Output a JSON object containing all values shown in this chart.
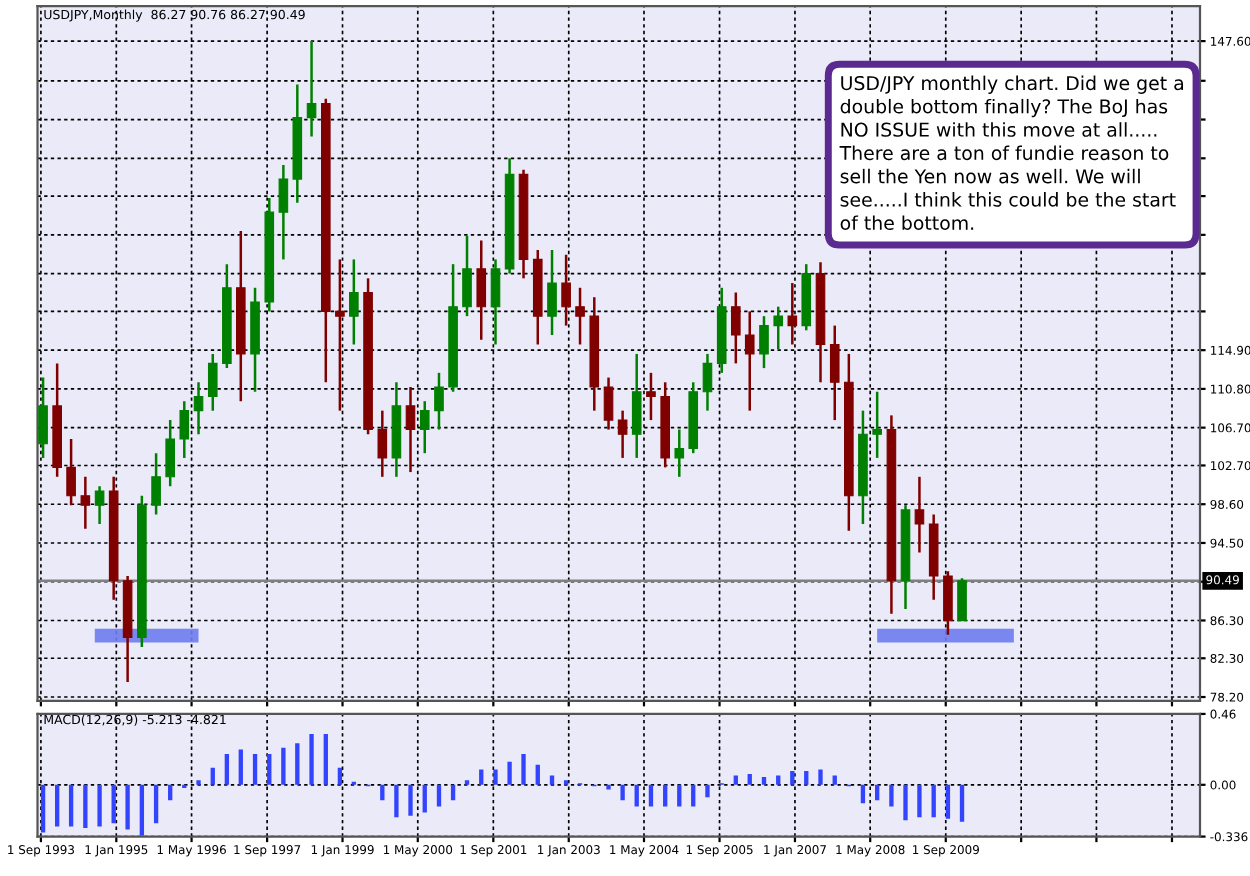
{
  "chart_data": [
    {
      "type": "candlestick",
      "title": "USDJPY,Monthly  86.27 90.76 86.27 90.49",
      "x": [
        "1993-09",
        "1993-12",
        "1994-03",
        "1994-06",
        "1994-09",
        "1994-12",
        "1995-03",
        "1995-06",
        "1995-09",
        "1995-12",
        "1996-03",
        "1996-06",
        "1996-09",
        "1996-12",
        "1997-03",
        "1997-06",
        "1997-09",
        "1997-12",
        "1998-03",
        "1998-06",
        "1998-09",
        "1998-12",
        "1999-03",
        "1999-06",
        "1999-09",
        "1999-12",
        "2000-03",
        "2000-06",
        "2000-09",
        "2000-12",
        "2001-03",
        "2001-06",
        "2001-09",
        "2001-12",
        "2002-03",
        "2002-06",
        "2002-09",
        "2002-12",
        "2003-03",
        "2003-06",
        "2003-09",
        "2003-12",
        "2004-03",
        "2004-06",
        "2004-09",
        "2004-12",
        "2005-03",
        "2005-06",
        "2005-09",
        "2005-12",
        "2006-03",
        "2006-06",
        "2006-09",
        "2006-12",
        "2007-03",
        "2007-06",
        "2007-09",
        "2007-12",
        "2008-03",
        "2008-06",
        "2008-09",
        "2008-12",
        "2009-03",
        "2009-06",
        "2009-09",
        "2009-12"
      ],
      "ohlc": [
        [
          105.0,
          112.0,
          103.5,
          109.0
        ],
        [
          109.0,
          113.5,
          101.5,
          102.5
        ],
        [
          102.5,
          105.5,
          98.5,
          99.5
        ],
        [
          99.5,
          101.5,
          96.0,
          98.5
        ],
        [
          98.5,
          100.5,
          96.5,
          100.0
        ],
        [
          100.0,
          101.5,
          88.5,
          90.5
        ],
        [
          90.5,
          91.0,
          79.8,
          84.5
        ],
        [
          84.5,
          99.5,
          83.5,
          98.5
        ],
        [
          98.5,
          104.0,
          97.5,
          101.5
        ],
        [
          101.5,
          107.5,
          100.5,
          105.5
        ],
        [
          105.5,
          109.5,
          103.5,
          108.5
        ],
        [
          108.5,
          111.5,
          106.0,
          110.0
        ],
        [
          110.0,
          114.5,
          108.5,
          113.5
        ],
        [
          113.5,
          124.0,
          113.0,
          121.5
        ],
        [
          121.5,
          127.5,
          109.5,
          114.5
        ],
        [
          114.5,
          121.5,
          110.5,
          120.0
        ],
        [
          120.0,
          131.0,
          119.0,
          129.5
        ],
        [
          129.5,
          134.5,
          124.5,
          133.0
        ],
        [
          133.0,
          143.0,
          130.5,
          139.5
        ],
        [
          139.5,
          147.6,
          137.5,
          141.0
        ],
        [
          141.0,
          141.5,
          111.5,
          119.0
        ],
        [
          119.0,
          124.5,
          108.5,
          118.5
        ],
        [
          118.5,
          124.5,
          115.5,
          121.0
        ],
        [
          121.0,
          122.5,
          106.0,
          106.5
        ],
        [
          106.5,
          108.5,
          101.5,
          103.5
        ],
        [
          103.5,
          111.5,
          101.5,
          109.0
        ],
        [
          109.0,
          111.0,
          102.0,
          106.5
        ],
        [
          106.5,
          109.5,
          104.0,
          108.5
        ],
        [
          108.5,
          112.5,
          106.5,
          111.0
        ],
        [
          111.0,
          124.0,
          110.5,
          119.5
        ],
        [
          119.5,
          127.0,
          118.5,
          123.5
        ],
        [
          123.5,
          126.5,
          116.0,
          119.5
        ],
        [
          119.5,
          124.5,
          115.5,
          123.5
        ],
        [
          123.5,
          135.2,
          123.0,
          133.5
        ],
        [
          133.5,
          134.0,
          122.5,
          124.5
        ],
        [
          124.5,
          125.5,
          115.5,
          118.5
        ],
        [
          118.5,
          125.5,
          116.5,
          122.0
        ],
        [
          122.0,
          125.0,
          117.5,
          119.5
        ],
        [
          119.5,
          121.5,
          115.5,
          118.5
        ],
        [
          118.5,
          120.5,
          108.5,
          111.0
        ],
        [
          111.0,
          112.0,
          106.5,
          107.5
        ],
        [
          107.5,
          108.5,
          103.5,
          106.0
        ],
        [
          106.0,
          114.5,
          103.5,
          110.5
        ],
        [
          110.5,
          112.5,
          107.5,
          110.0
        ],
        [
          110.0,
          111.5,
          102.5,
          103.5
        ],
        [
          103.5,
          106.5,
          101.5,
          104.5
        ],
        [
          104.5,
          111.5,
          104.0,
          110.5
        ],
        [
          110.5,
          114.5,
          108.5,
          113.5
        ],
        [
          113.5,
          121.5,
          112.5,
          119.5
        ],
        [
          119.5,
          121.0,
          113.5,
          116.5
        ],
        [
          116.5,
          119.0,
          108.5,
          114.5
        ],
        [
          114.5,
          118.5,
          113.0,
          117.5
        ],
        [
          117.5,
          119.5,
          115.0,
          118.5
        ],
        [
          118.5,
          122.0,
          115.5,
          117.5
        ],
        [
          117.5,
          124.0,
          117.0,
          123.0
        ],
        [
          123.0,
          124.2,
          111.5,
          115.5
        ],
        [
          115.5,
          117.5,
          107.5,
          111.5
        ],
        [
          111.5,
          114.5,
          95.8,
          99.5
        ],
        [
          99.5,
          108.5,
          96.5,
          106.0
        ],
        [
          106.0,
          110.5,
          103.5,
          106.5
        ],
        [
          106.5,
          108.0,
          87.0,
          90.5
        ],
        [
          90.5,
          98.5,
          87.5,
          98.0
        ],
        [
          98.0,
          101.5,
          93.5,
          96.5
        ],
        [
          96.5,
          97.5,
          88.5,
          91.0
        ],
        [
          91.0,
          91.5,
          84.8,
          86.27
        ],
        [
          86.27,
          90.76,
          86.27,
          90.49
        ]
      ],
      "colors": [
        "#008000",
        "#800000",
        "#800000",
        "#800000",
        "#008000",
        "#800000",
        "#800000",
        "#008000",
        "#008000",
        "#008000",
        "#008000",
        "#008000",
        "#008000",
        "#008000",
        "#800000",
        "#008000",
        "#008000",
        "#008000",
        "#008000",
        "#008000",
        "#800000",
        "#800000",
        "#008000",
        "#800000",
        "#800000",
        "#008000",
        "#800000",
        "#008000",
        "#008000",
        "#008000",
        "#008000",
        "#800000",
        "#008000",
        "#008000",
        "#800000",
        "#800000",
        "#008000",
        "#800000",
        "#800000",
        "#800000",
        "#800000",
        "#800000",
        "#008000",
        "#800000",
        "#800000",
        "#008000",
        "#008000",
        "#008000",
        "#008000",
        "#800000",
        "#800000",
        "#008000",
        "#008000",
        "#800000",
        "#008000",
        "#800000",
        "#800000",
        "#800000",
        "#008000",
        "#008000",
        "#800000",
        "#008000",
        "#800000",
        "#800000",
        "#800000",
        "#008000"
      ],
      "series": [
        {
          "type": "line",
          "color": "#6f7cf0",
          "x": [
            "1994-08",
            "1996-06"
          ],
          "values": [
            84.7,
            84.7
          ]
        },
        {
          "type": "line",
          "color": "#6f7cf0",
          "x": [
            "2008-06",
            "2010-11"
          ],
          "values": [
            84.7,
            84.7
          ]
        }
      ],
      "ylim": [
        77.8,
        151.3
      ],
      "yticks": [
        {
          "value": 78.2,
          "label": "78.20"
        },
        {
          "value": 82.3,
          "label": "82.30"
        },
        {
          "value": 86.3,
          "label": "86.30"
        },
        {
          "value": 90.4,
          "label": null
        },
        {
          "value": 94.5,
          "label": "94.50"
        },
        {
          "value": 98.6,
          "label": "98.60"
        },
        {
          "value": 102.7,
          "label": "102.70"
        },
        {
          "value": 106.7,
          "label": "106.70"
        },
        {
          "value": 110.8,
          "label": "110.80"
        },
        {
          "value": 114.9,
          "label": "114.90"
        },
        {
          "value": 119.0,
          "label": null
        },
        {
          "value": 123.0,
          "label": null
        },
        {
          "value": 127.1,
          "label": null
        },
        {
          "value": 131.2,
          "label": null
        },
        {
          "value": 135.2,
          "label": null
        },
        {
          "value": 139.3,
          "label": null
        },
        {
          "value": 143.4,
          "label": null
        },
        {
          "value": 147.6,
          "label": "147.60"
        }
      ],
      "xlim": [
        "1993-08-10",
        "2014-03-01"
      ],
      "xticks": [
        {
          "value": "1993-09-01",
          "label": null
        },
        {
          "value": "1995-01-01",
          "label": null
        },
        {
          "value": "1996-05-01",
          "label": null
        },
        {
          "value": "1997-09-01",
          "label": null
        },
        {
          "value": "1999-01-01",
          "label": null
        },
        {
          "value": "2000-05-01",
          "label": null
        },
        {
          "value": "2001-09-01",
          "label": null
        },
        {
          "value": "2003-01-01",
          "label": null
        },
        {
          "value": "2004-05-01",
          "label": null
        },
        {
          "value": "2005-09-01",
          "label": null
        },
        {
          "value": "2007-01-01",
          "label": null
        },
        {
          "value": "2008-05-01",
          "label": null
        },
        {
          "value": "2009-09-01",
          "label": null
        },
        {
          "value": "2011-01-01",
          "label": null
        },
        {
          "value": "2012-05-01",
          "label": null
        },
        {
          "value": "2013-09-01",
          "label": null
        }
      ],
      "tick_labels": "y",
      "grid": true,
      "ref_lines": [
        {
          "axis": "y",
          "value": 90.49,
          "label": "90.49",
          "color": "#808080"
        }
      ],
      "annotations": [
        "USD/JPY monthly chart. Did we get a\ndouble bottom finally? The BoJ has\nNO ISSUE with this move at all.....\nThere are a ton of fundie reason to\nsell the Yen now as well. We will\nsee.....I think this could be the start\nof the bottom."
      ]
    },
    {
      "type": "bar",
      "title": "MACD(12,26,9) -5.213 -4.821",
      "color": "#3344ff",
      "x": [
        "1993-09",
        "1993-12",
        "1994-03",
        "1994-06",
        "1994-09",
        "1994-12",
        "1995-03",
        "1995-06",
        "1995-09",
        "1995-12",
        "1996-03",
        "1996-06",
        "1996-09",
        "1996-12",
        "1997-03",
        "1997-06",
        "1997-09",
        "1997-12",
        "1998-03",
        "1998-06",
        "1998-09",
        "1998-12",
        "1999-03",
        "1999-06",
        "1999-09",
        "1999-12",
        "2000-03",
        "2000-06",
        "2000-09",
        "2000-12",
        "2001-03",
        "2001-06",
        "2001-09",
        "2001-12",
        "2002-03",
        "2002-06",
        "2002-09",
        "2002-12",
        "2003-03",
        "2003-06",
        "2003-09",
        "2003-12",
        "2004-03",
        "2004-06",
        "2004-09",
        "2004-12",
        "2005-03",
        "2005-06",
        "2005-09",
        "2005-12",
        "2006-03",
        "2006-06",
        "2006-09",
        "2006-12",
        "2007-03",
        "2007-06",
        "2007-09",
        "2007-12",
        "2008-03",
        "2008-06",
        "2008-09",
        "2008-12",
        "2009-03",
        "2009-06",
        "2009-09",
        "2009-12"
      ],
      "values": [
        -0.31,
        -0.27,
        -0.27,
        -0.28,
        -0.27,
        -0.25,
        -0.29,
        -0.33,
        -0.25,
        -0.1,
        -0.02,
        0.03,
        0.11,
        0.2,
        0.23,
        0.2,
        0.2,
        0.24,
        0.27,
        0.33,
        0.33,
        0.11,
        0.02,
        -0.01,
        -0.1,
        -0.21,
        -0.2,
        -0.18,
        -0.14,
        -0.1,
        0.03,
        0.1,
        0.1,
        0.15,
        0.2,
        0.13,
        0.06,
        0.03,
        0.01,
        -0.01,
        -0.03,
        -0.1,
        -0.14,
        -0.14,
        -0.14,
        -0.14,
        -0.14,
        -0.08,
        0.01,
        0.06,
        0.07,
        0.05,
        0.06,
        0.09,
        0.09,
        0.1,
        0.06,
        -0.01,
        -0.12,
        -0.1,
        -0.14,
        -0.23,
        -0.21,
        -0.21,
        -0.22,
        -0.24
      ],
      "ylim": [
        -0.336,
        0.46
      ],
      "yticks": [
        {
          "value": -0.336,
          "label": "-0.336"
        },
        {
          "value": 0,
          "label": "0.00"
        },
        {
          "value": 0.46,
          "label": "0.46"
        }
      ],
      "xlim": [
        "1993-08-10",
        "2014-03-01"
      ],
      "xticks": [
        {
          "value": "1993-09-01",
          "label": "1 Sep 1993"
        },
        {
          "value": "1995-01-01",
          "label": "1 Jan 1995"
        },
        {
          "value": "1996-05-01",
          "label": "1 May 1996"
        },
        {
          "value": "1997-09-01",
          "label": "1 Sep 1997"
        },
        {
          "value": "1999-01-01",
          "label": "1 Jan 1999"
        },
        {
          "value": "2000-05-01",
          "label": "1 May 2000"
        },
        {
          "value": "2001-09-01",
          "label": "1 Sep 2001"
        },
        {
          "value": "2003-01-01",
          "label": "1 Jan 2003"
        },
        {
          "value": "2004-05-01",
          "label": "1 May 2004"
        },
        {
          "value": "2005-09-01",
          "label": "1 Sep 2005"
        },
        {
          "value": "2007-01-01",
          "label": "1 Jan 2007"
        },
        {
          "value": "2008-05-01",
          "label": "1 May 2008"
        },
        {
          "value": "2009-09-01",
          "label": "1 Sep 2009"
        },
        {
          "value": "2011-01-01",
          "label": null
        },
        {
          "value": "2012-05-01",
          "label": null
        },
        {
          "value": "2013-09-01",
          "label": null
        }
      ],
      "grid": true
    }
  ]
}
